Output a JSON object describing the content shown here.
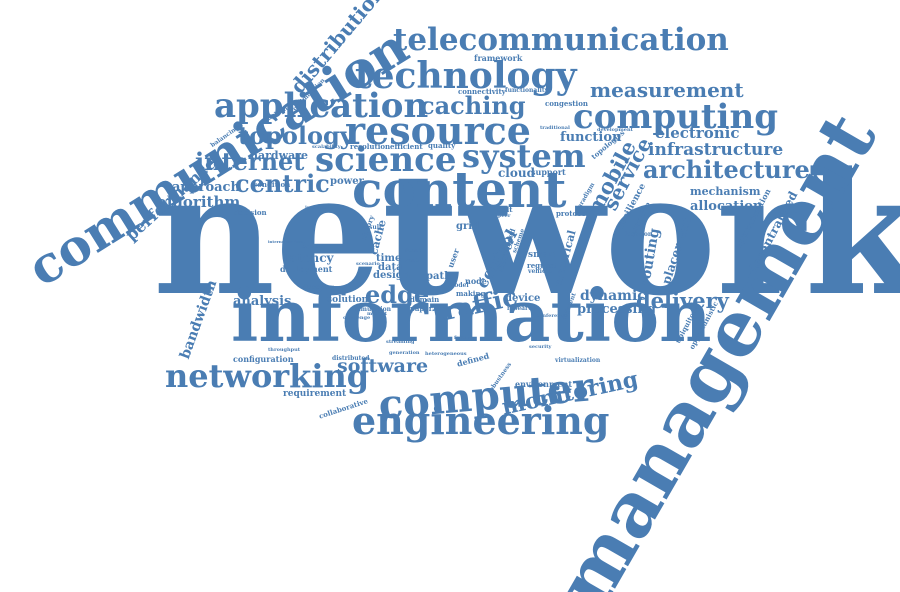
{
  "colors": {
    "word": "#4a7db3",
    "background": "#ffffff"
  },
  "words": [
    {
      "key": "network",
      "text": "network"
    },
    {
      "key": "information",
      "text": "information"
    },
    {
      "key": "management",
      "text": "management"
    },
    {
      "key": "communication",
      "text": "communication"
    },
    {
      "key": "content",
      "text": "content"
    },
    {
      "key": "computer",
      "text": "computer"
    },
    {
      "key": "engineering",
      "text": "engineering"
    },
    {
      "key": "networking",
      "text": "networking"
    },
    {
      "key": "telecommunication",
      "text": "telecommunication"
    },
    {
      "key": "technology",
      "text": "technology"
    },
    {
      "key": "application",
      "text": "application"
    },
    {
      "key": "resource",
      "text": "resource"
    },
    {
      "key": "computing",
      "text": "computing"
    },
    {
      "key": "caching",
      "text": "caching"
    },
    {
      "key": "system",
      "text": "system"
    },
    {
      "key": "science",
      "text": "science"
    },
    {
      "key": "internet",
      "text": "internet"
    },
    {
      "key": "topology",
      "text": "topology"
    },
    {
      "key": "centric",
      "text": "centric"
    },
    {
      "key": "architecture",
      "text": "architecture"
    },
    {
      "key": "infrastructure",
      "text": "infrastructure"
    },
    {
      "key": "measurement",
      "text": "measurement"
    },
    {
      "key": "traffic",
      "text": "traffic"
    },
    {
      "key": "edge",
      "text": "edge"
    },
    {
      "key": "monitoring",
      "text": "monitoring"
    },
    {
      "key": "delivery",
      "text": "delivery"
    },
    {
      "key": "software",
      "text": "software"
    },
    {
      "key": "distribution",
      "text": "distribution"
    },
    {
      "key": "performance",
      "text": "performance"
    },
    {
      "key": "algorithm",
      "text": "algorithm"
    },
    {
      "key": "approach",
      "text": "approach"
    },
    {
      "key": "hardware",
      "text": "hardware"
    },
    {
      "key": "electronic",
      "text": "electronic"
    },
    {
      "key": "function",
      "text": "function"
    },
    {
      "key": "mobile",
      "text": "mobile"
    },
    {
      "key": "service",
      "text": "service"
    },
    {
      "key": "control",
      "text": "control"
    },
    {
      "key": "routing",
      "text": "routing"
    },
    {
      "key": "placement",
      "text": "placement"
    },
    {
      "key": "dynamic",
      "text": "dynamic"
    },
    {
      "key": "processing",
      "text": "processing"
    },
    {
      "key": "allocation",
      "text": "allocation"
    },
    {
      "key": "mechanism",
      "text": "mechanism"
    },
    {
      "key": "decentralized",
      "text": "decentralized"
    },
    {
      "key": "bandwidth",
      "text": "bandwidth"
    },
    {
      "key": "analysis",
      "text": "analysis"
    },
    {
      "key": "latency",
      "text": "latency"
    },
    {
      "key": "deployment",
      "text": "deployment"
    },
    {
      "key": "configuration",
      "text": "configuration"
    },
    {
      "key": "requirement",
      "text": "requirement"
    },
    {
      "key": "collaborative",
      "text": "collaborative"
    },
    {
      "key": "environment",
      "text": "environment"
    },
    {
      "key": "cloud",
      "text": "cloud"
    },
    {
      "key": "power",
      "text": "power"
    },
    {
      "key": "support",
      "text": "support"
    },
    {
      "key": "quality",
      "text": "quality"
    },
    {
      "key": "resolution",
      "text": "resolution"
    },
    {
      "key": "efficient",
      "text": "efficient"
    },
    {
      "key": "condition",
      "text": "condition"
    },
    {
      "key": "decision",
      "text": "decision"
    },
    {
      "key": "framework",
      "text": "framework"
    },
    {
      "key": "connectivity",
      "text": "connectivity"
    },
    {
      "key": "functionality",
      "text": "functionality"
    },
    {
      "key": "congestion",
      "text": "congestion"
    },
    {
      "key": "development",
      "text": "development"
    },
    {
      "key": "optimization",
      "text": "optimization"
    },
    {
      "key": "complexity",
      "text": "complexity"
    },
    {
      "key": "balancing",
      "text": "balancing"
    },
    {
      "key": "scalability",
      "text": "scalability"
    },
    {
      "key": "design",
      "text": "design"
    },
    {
      "key": "time",
      "text": "time"
    },
    {
      "key": "data",
      "text": "data"
    },
    {
      "key": "cache",
      "text": "cache"
    },
    {
      "key": "path",
      "text": "path"
    },
    {
      "key": "grid",
      "text": "grid"
    },
    {
      "key": "user",
      "text": "user"
    },
    {
      "key": "server",
      "text": "server"
    },
    {
      "key": "smart",
      "text": "smart"
    },
    {
      "key": "vehicle",
      "text": "vehicle"
    },
    {
      "key": "electrical",
      "text": "electrical"
    },
    {
      "key": "device",
      "text": "device"
    },
    {
      "key": "research",
      "text": "research"
    },
    {
      "key": "solution",
      "text": "solution"
    },
    {
      "key": "simulation",
      "text": "simulation"
    },
    {
      "key": "domain",
      "text": "domain"
    },
    {
      "key": "paper",
      "text": "paper"
    },
    {
      "key": "model",
      "text": "model"
    },
    {
      "key": "distributed",
      "text": "distributed"
    },
    {
      "key": "defined",
      "text": "defined"
    },
    {
      "key": "virtualization",
      "text": "virtualization"
    },
    {
      "key": "ubiquitous",
      "text": "ubiquitous"
    },
    {
      "key": "opportunistic",
      "text": "opportunistic"
    },
    {
      "key": "approximation",
      "text": "approximation"
    },
    {
      "key": "resilience",
      "text": "resilience"
    },
    {
      "key": "adaptive",
      "text": "adaptive"
    },
    {
      "key": "topologies",
      "text": "topologies"
    },
    {
      "key": "paradigm",
      "text": "paradigm"
    },
    {
      "key": "protocol",
      "text": "protocol"
    },
    {
      "key": "location",
      "text": "location"
    },
    {
      "key": "discovery",
      "text": "discovery"
    },
    {
      "key": "market",
      "text": "market"
    },
    {
      "key": "scheme",
      "text": "scheme"
    },
    {
      "key": "based",
      "text": "based"
    },
    {
      "key": "request",
      "text": "request"
    },
    {
      "key": "conference",
      "text": "conference"
    },
    {
      "key": "robustness",
      "text": "robustness"
    },
    {
      "key": "streaming",
      "text": "streaming"
    },
    {
      "key": "generation",
      "text": "generation"
    },
    {
      "key": "challenge",
      "text": "challenge"
    },
    {
      "key": "heterogeneous",
      "text": "heterogeneous"
    },
    {
      "key": "node",
      "text": "node"
    },
    {
      "key": "theory",
      "text": "theory"
    },
    {
      "key": "different",
      "text": "different"
    },
    {
      "key": "failure",
      "text": "failure"
    },
    {
      "key": "making",
      "text": "making"
    },
    {
      "key": "fault",
      "text": "fault"
    },
    {
      "key": "peer",
      "text": "peer"
    },
    {
      "key": "scenario",
      "text": "scenario"
    },
    {
      "key": "rate",
      "text": "rate"
    },
    {
      "key": "state",
      "text": "state"
    },
    {
      "key": "capacity",
      "text": "capacity"
    },
    {
      "key": "throughput",
      "text": "throughput"
    },
    {
      "key": "security",
      "text": "security"
    },
    {
      "key": "result",
      "text": "result"
    },
    {
      "key": "traditional",
      "text": "traditional"
    },
    {
      "key": "instance",
      "text": "instance"
    },
    {
      "key": "internetworking",
      "text": "internetworking"
    }
  ]
}
